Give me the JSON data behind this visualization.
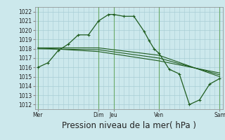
{
  "title": "",
  "xlabel": "Pression niveau de la mer( hPa )",
  "ylabel": "",
  "bg_color": "#cce8ec",
  "grid_color": "#a8cdd4",
  "line_color": "#1e5c1e",
  "ylim": [
    1011.5,
    1022.5
  ],
  "yticks": [
    1012,
    1013,
    1014,
    1015,
    1016,
    1017,
    1018,
    1019,
    1020,
    1021,
    1022
  ],
  "xtick_labels": [
    "Mer",
    "Dim",
    "Jeu",
    "Ven",
    "Sam"
  ],
  "xtick_positions": [
    0,
    6,
    7.5,
    12,
    18
  ],
  "vline_positions": [
    0,
    6,
    7.5,
    12,
    18
  ],
  "xlim": [
    -0.3,
    18.3
  ],
  "series": [
    {
      "x": [
        0,
        1,
        2,
        3,
        4,
        5,
        6,
        7,
        7.5,
        8.5,
        9.5,
        10.5,
        11,
        11.5,
        12,
        13,
        14,
        15,
        16,
        17,
        18
      ],
      "y": [
        1016.0,
        1016.5,
        1017.8,
        1018.5,
        1019.5,
        1019.5,
        1021.0,
        1021.7,
        1021.7,
        1021.5,
        1021.5,
        1019.9,
        1018.9,
        1018.0,
        1017.5,
        1015.8,
        1015.3,
        1012.0,
        1012.5,
        1014.2,
        1014.8
      ],
      "with_markers": true
    },
    {
      "x": [
        0,
        6,
        12,
        18
      ],
      "y": [
        1018.1,
        1018.1,
        1017.3,
        1015.0
      ],
      "with_markers": false
    },
    {
      "x": [
        0,
        6,
        12,
        18
      ],
      "y": [
        1018.0,
        1017.9,
        1017.0,
        1015.2
      ],
      "with_markers": false
    },
    {
      "x": [
        0,
        6,
        12,
        18
      ],
      "y": [
        1018.1,
        1017.7,
        1016.7,
        1015.4
      ],
      "with_markers": false
    }
  ],
  "tick_fontsize": 5.5,
  "xlabel_fontsize": 8.5
}
